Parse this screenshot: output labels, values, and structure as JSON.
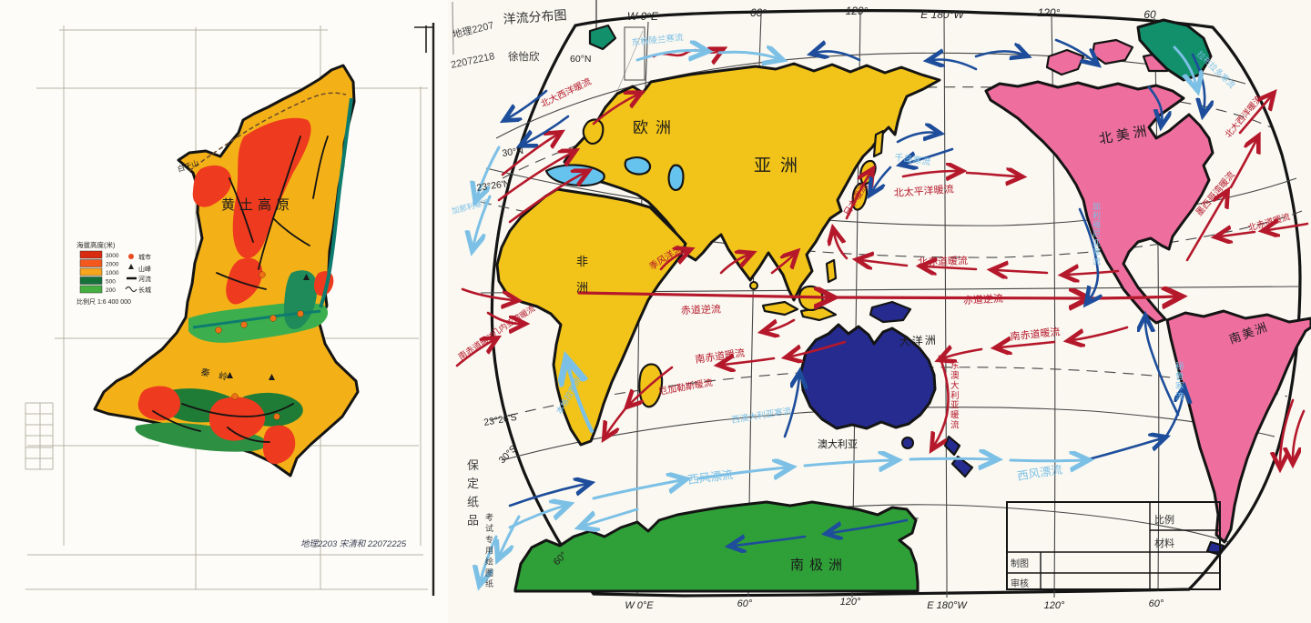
{
  "page": {
    "background": "#fcfbf7"
  },
  "left_map": {
    "region_label": "黄土高原",
    "mountains": {
      "baiyushan": "白于山",
      "qinling": "秦岭"
    },
    "legend": {
      "title": "海拔高度(米)",
      "levels": [
        {
          "value": "3000",
          "color": "#d92b10"
        },
        {
          "value": "2000",
          "color": "#f4581c"
        },
        {
          "value": "1000",
          "color": "#f6a51c"
        },
        {
          "value": "500",
          "color": "#15713a"
        },
        {
          "value": "200",
          "color": "#45ae40"
        }
      ],
      "symbols": [
        {
          "name": "city-dot",
          "label": "城市"
        },
        {
          "name": "peak-triangle",
          "label": "山峰"
        },
        {
          "name": "river-line",
          "label": "河流"
        },
        {
          "name": "wall-wave",
          "label": "长城"
        }
      ],
      "scale": "比例尺 1:6 400 000"
    },
    "signature": "地理2203 宋清和 22072225"
  },
  "right_map": {
    "title": "洋流分布图",
    "margin": {
      "class_id": "地理2207",
      "student_id": "22072218",
      "author": "徐怡欣",
      "paper_brand": "保定纸品",
      "paper_type": "考试专用绘图纸"
    },
    "axis": {
      "top": [
        "W 0°E",
        "60°",
        "120°",
        "E 180°W",
        "120°",
        "60"
      ],
      "bottom": [
        "W 0°E",
        "60°",
        "120°",
        "E 180°W",
        "120°",
        "60°"
      ],
      "latitudes": {
        "n60": "60°N",
        "n30": "30°N",
        "tropic_n": "23°26'N",
        "tropic_s": "23°26'S",
        "s30": "30°S",
        "s60": "60°"
      }
    },
    "continents": {
      "europe": "欧洲",
      "asia": "亚洲",
      "africa": "非洲",
      "north_america": "北美洲",
      "south_america": "南美洲",
      "oceania": "大洋洲",
      "australia": "澳大利亚",
      "antarctica": "南极洲"
    },
    "warm_currents": {
      "n_atlantic_1": "北大西洋暖流",
      "n_pacific": "北太平洋暖流",
      "japan": "日本暖流",
      "n_equatorial_pac": "北赤道暖流",
      "counter_ind": "赤道逆流",
      "counter_pac": "赤道逆流",
      "s_equatorial_pac": "南赤道暖流",
      "s_equatorial_ind": "南赤道暖流",
      "s_equatorial_atl": "南赤道暖流",
      "guinea": "几内亚湾暖流",
      "monsoon": "季风洋流",
      "agulhas": "厄加勒斯暖流",
      "e_australia": "东澳大利亚暖流",
      "gulf_stream": "墨西哥湾暖流",
      "n_atlantic_2": "北大西洋暖流",
      "n_equatorial_atl": "北赤道暖流"
    },
    "cold_currents": {
      "e_greenland": "东格陵兰寒流",
      "kuril": "千岛寒流",
      "labrador": "拉布拉多寒流",
      "california": "加利福尼亚寒流",
      "peru": "秘鲁寒流",
      "west_wind_1": "西风漂流",
      "west_wind_2": "西风漂流",
      "w_australia": "西澳大利亚寒流",
      "benguela": "本格拉寒流",
      "canary": "加那利寒流"
    },
    "title_block": {
      "scale": "比例",
      "material": "材料",
      "drawn_by": "制图",
      "checked_by": "审核"
    },
    "colors": {
      "warm": "#b5182b",
      "cold": "#1d4d9b",
      "cold_light": "#7cc0e6",
      "land_yellow": "#f2c419",
      "land_pink": "#ee6f9e",
      "land_navy": "#252b8f",
      "land_green": "#2f9f38",
      "land_teal": "#12906c",
      "sea_blue": "#66c3ee"
    }
  }
}
